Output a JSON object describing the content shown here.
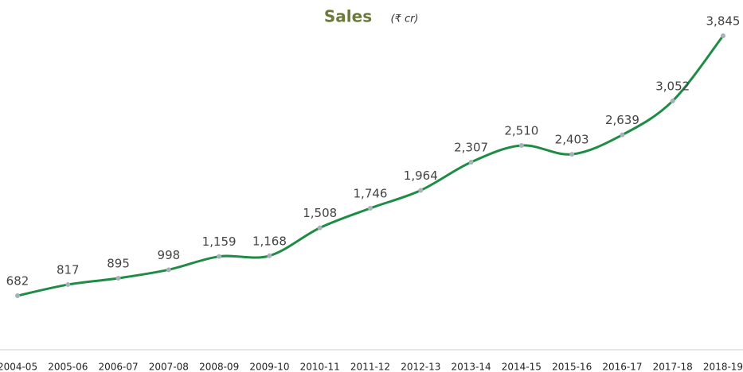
{
  "chart_data": {
    "type": "line",
    "title": "Sales",
    "subtitle": "(₹ cr)",
    "categories": [
      "2004-05",
      "2005-06",
      "2006-07",
      "2007-08",
      "2008-09",
      "2009-10",
      "2010-11",
      "2011-12",
      "2012-13",
      "2013-14",
      "2014-15",
      "2015-16",
      "2016-17",
      "2017-18",
      "2018-19"
    ],
    "series": [
      {
        "name": "Sales",
        "color": "#1e8c45",
        "values": [
          682,
          817,
          895,
          998,
          1159,
          1168,
          1508,
          1746,
          1964,
          2307,
          2510,
          2403,
          2639,
          3052,
          3845
        ],
        "value_labels": [
          "682",
          "817",
          "895",
          "998",
          "1,159",
          "1,168",
          "1,508",
          "1,746",
          "1,964",
          "2,307",
          "2,510",
          "2,403",
          "2,639",
          "3,052",
          "3,845"
        ]
      }
    ],
    "marker_color": "#a7b2b6",
    "grid": false
  }
}
